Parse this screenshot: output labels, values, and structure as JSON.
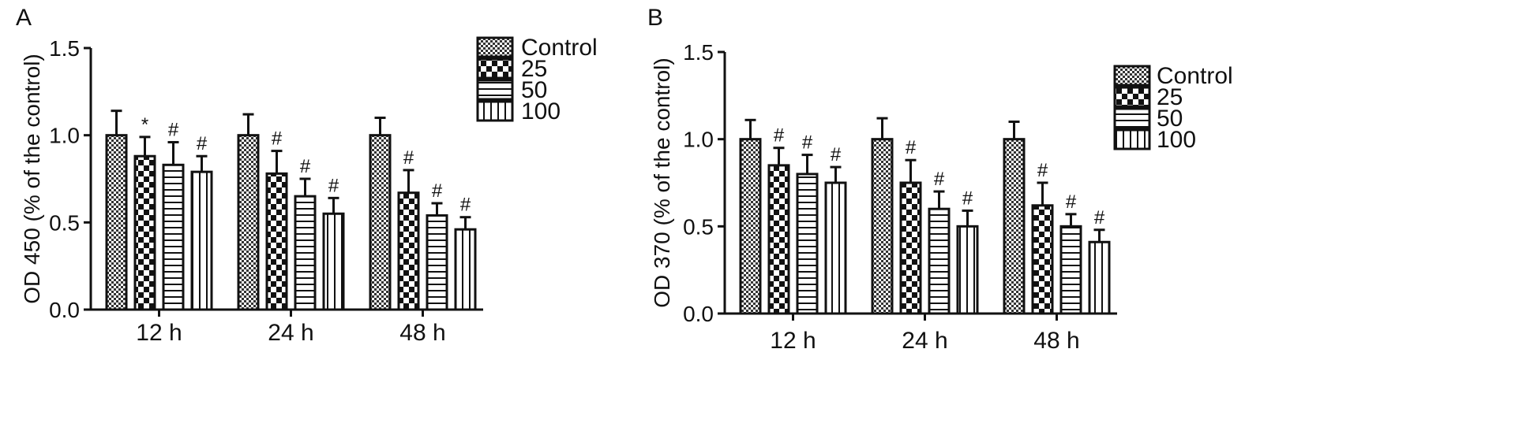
{
  "chart_data": [
    {
      "type": "bar",
      "panel_label": "A",
      "ylabel": "OD 450 (% of the control)",
      "ylim": [
        0,
        1.5
      ],
      "yticks": [
        "0.0",
        "0.5",
        "1.0",
        "1.5"
      ],
      "categories": [
        "12 h",
        "24 h",
        "48 h"
      ],
      "legend_position": "top-right",
      "series": [
        {
          "name": "Control",
          "pattern": "checker-fine",
          "values": [
            1.0,
            1.0,
            1.0
          ],
          "errors": [
            0.14,
            0.12,
            0.1
          ],
          "annotations": [
            "",
            "",
            ""
          ]
        },
        {
          "name": "25",
          "pattern": "checker-bold",
          "values": [
            0.88,
            0.78,
            0.67
          ],
          "errors": [
            0.11,
            0.13,
            0.13
          ],
          "annotations": [
            "*",
            "#",
            "#"
          ]
        },
        {
          "name": "50",
          "pattern": "horizontal-lines",
          "values": [
            0.83,
            0.65,
            0.54
          ],
          "errors": [
            0.13,
            0.1,
            0.07
          ],
          "annotations": [
            "#",
            "#",
            "#"
          ]
        },
        {
          "name": "100",
          "pattern": "vertical-lines",
          "values": [
            0.79,
            0.55,
            0.46
          ],
          "errors": [
            0.09,
            0.09,
            0.07
          ],
          "annotations": [
            "#",
            "#",
            "#"
          ]
        }
      ]
    },
    {
      "type": "bar",
      "panel_label": "B",
      "ylabel": "OD 370 (% of the control)",
      "ylim": [
        0,
        1.5
      ],
      "yticks": [
        "0.0",
        "0.5",
        "1.0",
        "1.5"
      ],
      "categories": [
        "12 h",
        "24 h",
        "48 h"
      ],
      "legend_position": "right",
      "series": [
        {
          "name": "Control",
          "pattern": "checker-fine",
          "values": [
            1.0,
            1.0,
            1.0
          ],
          "errors": [
            0.11,
            0.12,
            0.1
          ],
          "annotations": [
            "",
            "",
            ""
          ]
        },
        {
          "name": "25",
          "pattern": "checker-bold",
          "values": [
            0.85,
            0.75,
            0.62
          ],
          "errors": [
            0.1,
            0.13,
            0.13
          ],
          "annotations": [
            "#",
            "#",
            "#"
          ]
        },
        {
          "name": "50",
          "pattern": "horizontal-lines",
          "values": [
            0.8,
            0.6,
            0.5
          ],
          "errors": [
            0.11,
            0.1,
            0.07
          ],
          "annotations": [
            "#",
            "#",
            "#"
          ]
        },
        {
          "name": "100",
          "pattern": "vertical-lines",
          "values": [
            0.75,
            0.5,
            0.41
          ],
          "errors": [
            0.09,
            0.09,
            0.07
          ],
          "annotations": [
            "#",
            "#",
            "#"
          ]
        }
      ]
    }
  ]
}
